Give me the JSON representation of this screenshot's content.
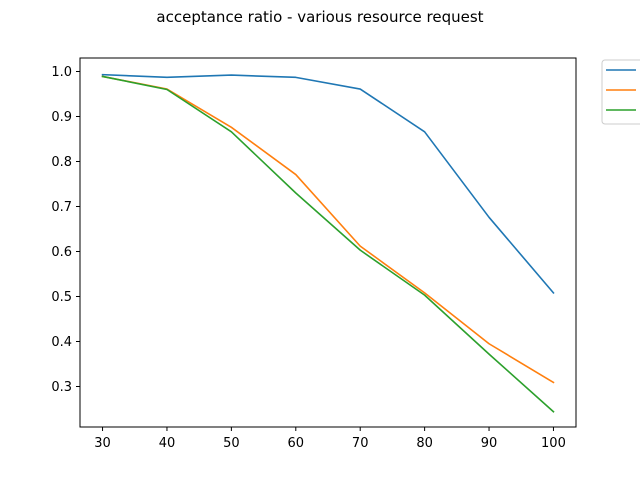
{
  "chart_data": {
    "type": "line",
    "title": "acceptance ratio - various resource request",
    "xlabel": "",
    "ylabel": "",
    "x": [
      30,
      40,
      50,
      60,
      70,
      80,
      90,
      100
    ],
    "xticks": [
      30,
      40,
      50,
      60,
      70,
      80,
      90,
      100
    ],
    "yticks": [
      0.3,
      0.4,
      0.5,
      0.6,
      0.7,
      0.8,
      0.9,
      1.0
    ],
    "xlim": [
      26.5,
      103.5
    ],
    "ylim": [
      0.21,
      1.03
    ],
    "grid": false,
    "legend": "outside-top-right",
    "series": [
      {
        "color": "#1f77b4",
        "values": [
          0.993,
          0.987,
          0.992,
          0.987,
          0.961,
          0.866,
          0.676,
          0.508
        ]
      },
      {
        "color": "#ff7f0e",
        "values": [
          0.989,
          0.961,
          0.876,
          0.771,
          0.612,
          0.508,
          0.395,
          0.309
        ]
      },
      {
        "color": "#2ca02c",
        "values": [
          0.989,
          0.96,
          0.866,
          0.73,
          0.603,
          0.503,
          0.372,
          0.244
        ]
      }
    ]
  }
}
